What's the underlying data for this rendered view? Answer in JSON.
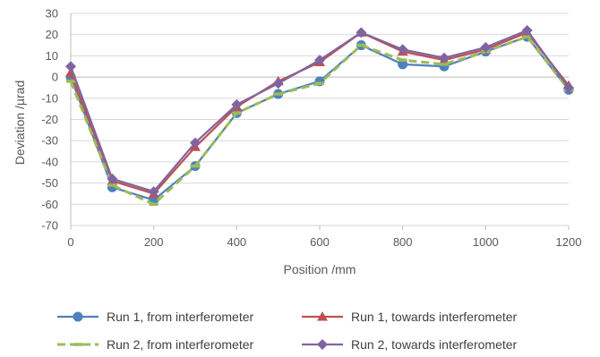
{
  "chart_data": {
    "type": "line",
    "title": "",
    "xlabel": "Position /mm",
    "ylabel": "Deviation /µrad",
    "xlim": [
      0,
      1200
    ],
    "ylim": [
      -70,
      30
    ],
    "x_ticks": [
      0,
      200,
      400,
      600,
      800,
      1000,
      1200
    ],
    "y_ticks": [
      30,
      20,
      10,
      0,
      -10,
      -20,
      -30,
      -40,
      -50,
      -60,
      -70
    ],
    "grid": "horizontal",
    "legend_position": "bottom",
    "x": [
      0,
      100,
      200,
      300,
      400,
      500,
      600,
      700,
      800,
      900,
      1000,
      1100,
      1200
    ],
    "series": [
      {
        "name": "Run 1, from interferometer",
        "color": "#4f81bd",
        "marker": "circle",
        "line": "solid",
        "values": [
          0,
          -52,
          -58,
          -42,
          -17,
          -8,
          -2,
          15,
          6,
          5,
          12,
          19,
          -6
        ]
      },
      {
        "name": "Run 1, towards interferometer",
        "color": "#c0504d",
        "marker": "triangle",
        "line": "solid",
        "values": [
          2,
          -49,
          -55,
          -33,
          -14,
          -2,
          7,
          21,
          12,
          8,
          13,
          21,
          -4
        ]
      },
      {
        "name": "Run 2, from interferometer",
        "color": "#9bbb59",
        "marker": "dash",
        "line": "dashed",
        "values": [
          -2,
          -51,
          -60,
          -42,
          -17,
          -8,
          -3,
          15,
          8,
          6,
          12,
          19,
          -6
        ]
      },
      {
        "name": "Run 2, towards interferometer",
        "color": "#8064a2",
        "marker": "diamond",
        "line": "solid",
        "values": [
          5,
          -48,
          -54,
          -31,
          -13,
          -3,
          8,
          21,
          13,
          9,
          14,
          22,
          -5
        ]
      }
    ]
  }
}
